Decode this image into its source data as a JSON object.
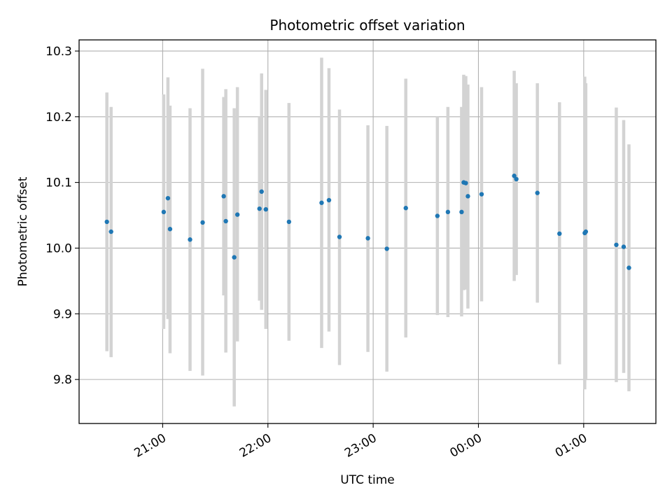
{
  "chart_data": {
    "type": "scatter",
    "title": "Photometric offset variation",
    "xlabel": "UTC time",
    "ylabel": "Photometric offset",
    "grid": true,
    "x_tick_labels": [
      "21:00",
      "22:00",
      "23:00",
      "00:00",
      "01:00"
    ],
    "x_tick_values": [
      21.0,
      22.0,
      23.0,
      24.0,
      25.0
    ],
    "y_tick_values": [
      9.8,
      9.9,
      10.0,
      10.1,
      10.2,
      10.3
    ],
    "y_tick_labels": [
      "9.8",
      "9.9",
      "10.0",
      "10.1",
      "10.2",
      "10.3"
    ],
    "xlim": [
      20.206,
      25.686
    ],
    "ylim": [
      9.733,
      10.317
    ],
    "colors": {
      "points": "#1f77b4",
      "errorbars": "#d3d3d3",
      "grid": "#b0b0b0"
    },
    "series": [
      {
        "points": [
          {
            "x": 20.47,
            "y": 10.04,
            "lo": 9.843,
            "hi": 10.237
          },
          {
            "x": 20.51,
            "y": 10.025,
            "lo": 9.834,
            "hi": 10.215
          },
          {
            "x": 21.01,
            "y": 10.055,
            "lo": 9.877,
            "hi": 10.234
          },
          {
            "x": 21.05,
            "y": 10.076,
            "lo": 9.892,
            "hi": 10.26
          },
          {
            "x": 21.07,
            "y": 10.029,
            "lo": 9.84,
            "hi": 10.217
          },
          {
            "x": 21.26,
            "y": 10.013,
            "lo": 9.813,
            "hi": 10.213
          },
          {
            "x": 21.38,
            "y": 10.039,
            "lo": 9.806,
            "hi": 10.273
          },
          {
            "x": 21.58,
            "y": 10.079,
            "lo": 9.928,
            "hi": 10.23
          },
          {
            "x": 21.6,
            "y": 10.041,
            "lo": 9.841,
            "hi": 10.242
          },
          {
            "x": 21.68,
            "y": 9.986,
            "lo": 9.759,
            "hi": 10.213
          },
          {
            "x": 21.71,
            "y": 10.051,
            "lo": 9.858,
            "hi": 10.245
          },
          {
            "x": 21.92,
            "y": 10.06,
            "lo": 9.92,
            "hi": 10.2
          },
          {
            "x": 21.94,
            "y": 10.086,
            "lo": 9.906,
            "hi": 10.266
          },
          {
            "x": 21.98,
            "y": 10.059,
            "lo": 9.877,
            "hi": 10.241
          },
          {
            "x": 22.2,
            "y": 10.04,
            "lo": 9.859,
            "hi": 10.221
          },
          {
            "x": 22.51,
            "y": 10.069,
            "lo": 9.848,
            "hi": 10.29
          },
          {
            "x": 22.58,
            "y": 10.073,
            "lo": 9.873,
            "hi": 10.274
          },
          {
            "x": 22.68,
            "y": 10.017,
            "lo": 9.822,
            "hi": 10.211
          },
          {
            "x": 22.95,
            "y": 10.015,
            "lo": 9.842,
            "hi": 10.187
          },
          {
            "x": 23.13,
            "y": 9.999,
            "lo": 9.812,
            "hi": 10.186
          },
          {
            "x": 23.31,
            "y": 10.061,
            "lo": 9.864,
            "hi": 10.258
          },
          {
            "x": 23.61,
            "y": 10.049,
            "lo": 9.898,
            "hi": 10.2
          },
          {
            "x": 23.71,
            "y": 10.055,
            "lo": 9.895,
            "hi": 10.215
          },
          {
            "x": 23.84,
            "y": 10.055,
            "lo": 9.896,
            "hi": 10.215
          },
          {
            "x": 23.86,
            "y": 10.1,
            "lo": 9.936,
            "hi": 10.264
          },
          {
            "x": 23.88,
            "y": 10.099,
            "lo": 9.937,
            "hi": 10.262
          },
          {
            "x": 23.9,
            "y": 10.079,
            "lo": 9.908,
            "hi": 10.249
          },
          {
            "x": 24.03,
            "y": 10.082,
            "lo": 9.919,
            "hi": 10.245
          },
          {
            "x": 24.34,
            "y": 10.11,
            "lo": 9.95,
            "hi": 10.27
          },
          {
            "x": 24.36,
            "y": 10.105,
            "lo": 9.959,
            "hi": 10.251
          },
          {
            "x": 24.56,
            "y": 10.084,
            "lo": 9.917,
            "hi": 10.251
          },
          {
            "x": 24.77,
            "y": 10.022,
            "lo": 9.823,
            "hi": 10.222
          },
          {
            "x": 25.01,
            "y": 10.023,
            "lo": 9.785,
            "hi": 10.261
          },
          {
            "x": 25.02,
            "y": 10.025,
            "lo": 9.799,
            "hi": 10.251
          },
          {
            "x": 25.31,
            "y": 10.005,
            "lo": 9.796,
            "hi": 10.214
          },
          {
            "x": 25.38,
            "y": 10.002,
            "lo": 9.81,
            "hi": 10.195
          },
          {
            "x": 25.43,
            "y": 9.97,
            "lo": 9.782,
            "hi": 10.158
          }
        ]
      }
    ]
  }
}
